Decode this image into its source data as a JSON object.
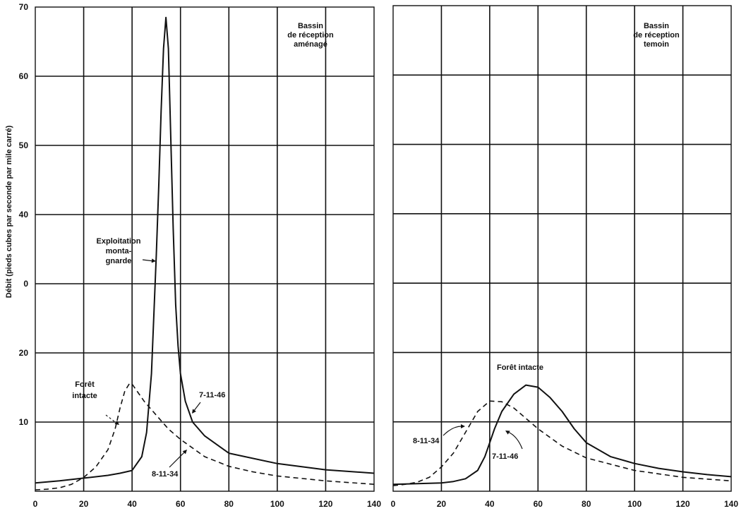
{
  "chart_data": [
    {
      "type": "line",
      "panel": "left",
      "title": "Bassin\nde réception\naménagé",
      "ylabel": "Débit (pieds cubes par seconde par mile carré)",
      "xlabel": "",
      "xlim": [
        0,
        140
      ],
      "ylim": [
        0,
        70
      ],
      "x_ticks": [
        0,
        20,
        40,
        60,
        80,
        100,
        120,
        140
      ],
      "y_ticks": [
        10,
        20,
        "0",
        40,
        50,
        60,
        70
      ],
      "grid": true,
      "series": [
        {
          "name": "7-11-46",
          "style": "solid",
          "x": [
            0,
            10,
            20,
            30,
            35,
            40,
            44,
            46,
            48,
            50,
            51,
            52,
            53,
            54,
            55,
            56,
            57,
            58,
            59,
            60,
            62,
            65,
            70,
            80,
            100,
            120,
            140
          ],
          "y": [
            1.2,
            1.5,
            1.9,
            2.3,
            2.6,
            3.0,
            5.0,
            8.5,
            17.0,
            34.0,
            44.0,
            55.0,
            64.0,
            68.5,
            64.0,
            51.0,
            38.0,
            27.0,
            21.0,
            17.0,
            13.0,
            10.0,
            8.0,
            5.5,
            4.0,
            3.1,
            2.6
          ]
        },
        {
          "name": "8-11-34",
          "style": "dashed",
          "x": [
            0,
            5,
            10,
            15,
            20,
            25,
            30,
            33,
            35,
            37,
            39,
            40,
            42,
            45,
            50,
            55,
            60,
            70,
            80,
            90,
            100,
            120,
            140
          ],
          "y": [
            0.2,
            0.3,
            0.5,
            1.0,
            2.0,
            3.5,
            6.0,
            9.0,
            12.0,
            14.5,
            15.6,
            15.5,
            14.5,
            13.0,
            11.0,
            9.0,
            7.5,
            5.0,
            3.6,
            2.8,
            2.2,
            1.5,
            1.0
          ]
        }
      ],
      "annotations": [
        "Exploitation\nmonta-\ngnarde",
        "Forêt\nintacte",
        "7-11-46",
        "8-11-34"
      ]
    },
    {
      "type": "line",
      "panel": "right",
      "title": "Bassin\nde réception\ntemoin",
      "xlabel": "",
      "xlim": [
        0,
        140
      ],
      "ylim": [
        0,
        70
      ],
      "x_ticks": [
        0,
        20,
        40,
        60,
        80,
        100,
        120,
        140
      ],
      "grid": true,
      "series": [
        {
          "name": "7-11-46",
          "style": "solid",
          "x": [
            0,
            10,
            20,
            25,
            30,
            35,
            38,
            40,
            42,
            45,
            50,
            55,
            60,
            65,
            70,
            75,
            80,
            90,
            100,
            110,
            120,
            130,
            140
          ],
          "y": [
            1.0,
            1.1,
            1.2,
            1.4,
            1.8,
            3.0,
            5.0,
            7.0,
            9.0,
            11.5,
            14.0,
            15.3,
            15.0,
            13.5,
            11.5,
            9.0,
            7.0,
            5.0,
            4.0,
            3.3,
            2.8,
            2.4,
            2.1
          ]
        },
        {
          "name": "8-11-34",
          "style": "dashed",
          "x": [
            0,
            5,
            10,
            15,
            20,
            25,
            30,
            35,
            40,
            45,
            50,
            55,
            60,
            70,
            80,
            100,
            120,
            140
          ],
          "y": [
            0.8,
            1.0,
            1.3,
            2.0,
            3.5,
            5.5,
            8.5,
            11.5,
            13.0,
            12.9,
            12.0,
            10.5,
            9.0,
            6.5,
            4.8,
            3.0,
            2.0,
            1.5
          ]
        }
      ],
      "annotations": [
        "Forêt intacte",
        "8-11-34",
        "7-11-46"
      ]
    }
  ]
}
